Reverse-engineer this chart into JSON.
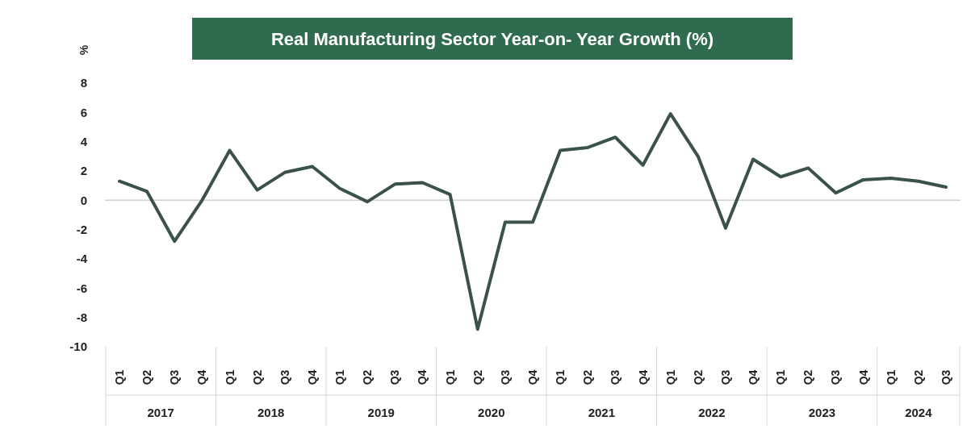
{
  "chart_data": {
    "type": "line",
    "title": "Real Manufacturing Sector Year-on- Year Growth (%)",
    "ylabel": "%",
    "categories": [
      "Q1",
      "Q2",
      "Q3",
      "Q4",
      "Q1",
      "Q2",
      "Q3",
      "Q4",
      "Q1",
      "Q2",
      "Q3",
      "Q4",
      "Q1",
      "Q2",
      "Q3",
      "Q4",
      "Q1",
      "Q2",
      "Q3",
      "Q4",
      "Q1",
      "Q2",
      "Q3",
      "Q4",
      "Q1",
      "Q2",
      "Q3",
      "Q4",
      "Q1",
      "Q2",
      "Q3"
    ],
    "annotations": [
      "2017",
      "2018",
      "2019",
      "2020",
      "2021",
      "2022",
      "2023",
      "2024"
    ],
    "series": [
      {
        "color": "#3b524c",
        "values": [
          1.3,
          0.6,
          -2.8,
          0.0,
          3.4,
          0.7,
          1.9,
          2.3,
          0.8,
          -0.1,
          1.1,
          1.2,
          0.4,
          -8.8,
          -1.5,
          -1.5,
          3.4,
          3.6,
          4.3,
          2.4,
          5.9,
          3.0,
          -1.9,
          2.8,
          1.6,
          2.2,
          0.5,
          1.4,
          1.5,
          1.3,
          0.9
        ]
      }
    ],
    "ylim": [
      -10,
      8
    ],
    "yticks": [
      -10,
      -8,
      -6,
      -4,
      -2,
      0,
      2,
      4,
      6,
      8
    ],
    "marker": "none",
    "line_style": "solid"
  }
}
